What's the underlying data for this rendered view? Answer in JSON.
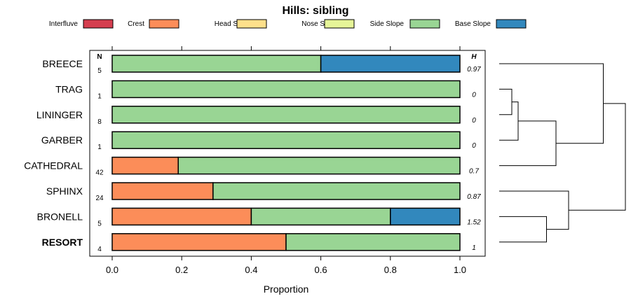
{
  "chart_data": {
    "type": "bar",
    "orientation": "horizontal",
    "stacked": true,
    "title": "Hills: sibling",
    "xlabel": "Proportion",
    "xlim": [
      0,
      1
    ],
    "x_ticks": [
      "0.0",
      "0.2",
      "0.4",
      "0.6",
      "0.8",
      "1.0"
    ],
    "n_header": "N",
    "h_header": "H",
    "legend_position": "top",
    "legend": [
      {
        "name": "Interfluve",
        "color": "#d53e4f"
      },
      {
        "name": "Crest",
        "color": "#fc8d59"
      },
      {
        "name": "Head Slope",
        "color": "#fee08b"
      },
      {
        "name": "Nose Slope",
        "color": "#e6f598"
      },
      {
        "name": "Side Slope",
        "color": "#99d594"
      },
      {
        "name": "Base Slope",
        "color": "#3288bd"
      }
    ],
    "categories": [
      "BREECE",
      "TRAG",
      "LININGER",
      "GARBER",
      "CATHEDRAL",
      "SPHINX",
      "BRONELL",
      "RESORT"
    ],
    "highlighted_category": "RESORT",
    "series": [
      {
        "name": "Interfluve",
        "values": [
          0,
          0,
          0,
          0,
          0,
          0,
          0,
          0
        ]
      },
      {
        "name": "Crest",
        "values": [
          0,
          0,
          0,
          0,
          0.19,
          0.29,
          0.4,
          0.5
        ]
      },
      {
        "name": "Head Slope",
        "values": [
          0,
          0,
          0,
          0,
          0,
          0,
          0,
          0
        ]
      },
      {
        "name": "Nose Slope",
        "values": [
          0,
          0,
          0,
          0,
          0,
          0,
          0,
          0
        ]
      },
      {
        "name": "Side Slope",
        "values": [
          0.6,
          1.0,
          1.0,
          1.0,
          0.81,
          0.71,
          0.4,
          0.5
        ]
      },
      {
        "name": "Base Slope",
        "values": [
          0.4,
          0,
          0,
          0,
          0,
          0,
          0.2,
          0
        ]
      }
    ],
    "n_values": [
      "5",
      "1",
      "8",
      "1",
      "42",
      "24",
      "5",
      "4"
    ],
    "h_values": [
      "0.97",
      "0",
      "0",
      "0",
      "0.7",
      "0.87",
      "1.52",
      "1"
    ],
    "dendrogram": {
      "leaf_order": [
        "BREECE",
        "TRAG",
        "LININGER",
        "GARBER",
        "CATHEDRAL",
        "SPHINX",
        "BRONELL",
        "RESORT"
      ],
      "merges": [
        {
          "a": "TRAG",
          "b": "LININGER",
          "height": 0.2
        },
        {
          "a": "m0",
          "b": "GARBER",
          "height": 0.3
        },
        {
          "a": "m1",
          "b": "CATHEDRAL",
          "height": 0.9
        },
        {
          "a": "BRONELL",
          "b": "RESORT",
          "height": 0.75
        },
        {
          "a": "SPHINX",
          "b": "m3",
          "height": 1.1
        },
        {
          "a": "BREECE",
          "b": "m2",
          "height": 1.65
        },
        {
          "a": "m5",
          "b": "m4",
          "height": 2.0
        }
      ]
    }
  }
}
